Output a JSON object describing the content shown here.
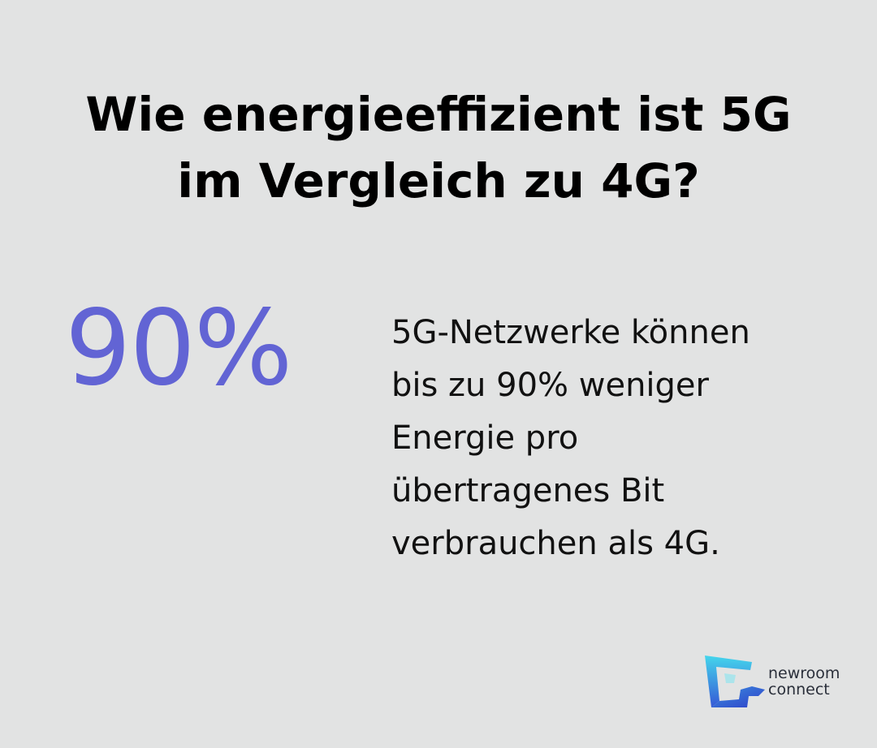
{
  "title": {
    "line1": "Wie energieeffizient ist 5G",
    "line2": "im Vergleich zu 4G?"
  },
  "stat": {
    "value": "90%",
    "description_lines": [
      "5G-Netzwerke können",
      "bis zu 90% weniger",
      "Energie pro",
      "übertragenes Bit",
      "verbrauchen als 4G."
    ]
  },
  "logo": {
    "line1": "newroom",
    "line2": "connect"
  },
  "colors": {
    "background": "#e2e3e3",
    "accent": "#6264d4",
    "logo_cyan": "#3fd0e8",
    "logo_blue": "#3a5bd8"
  }
}
